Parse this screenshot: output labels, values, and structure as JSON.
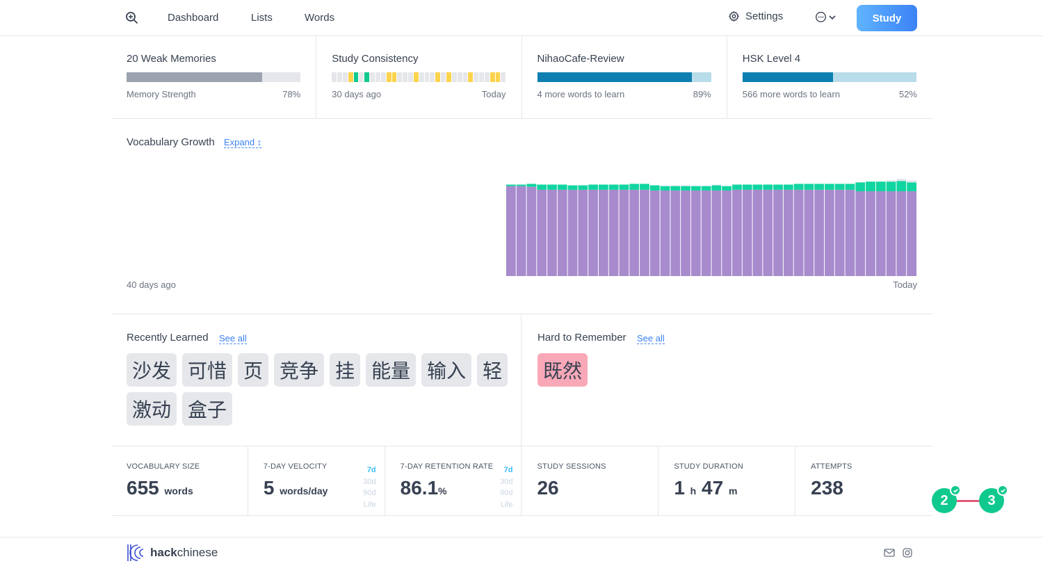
{
  "nav": {
    "links": [
      "Dashboard",
      "Lists",
      "Words"
    ],
    "settings_label": "Settings",
    "study_label": "Study"
  },
  "cards": [
    {
      "title": "20 Weak Memories",
      "sub": "Memory Strength",
      "right": "78%",
      "progress": 0.78,
      "color": "#9ca3af",
      "track": "#e5e7eb"
    },
    {
      "title": "Study Consistency",
      "sub": "30 days ago",
      "right": "Today"
    },
    {
      "title": "NihaoCafe-Review",
      "sub": "4 more words to learn",
      "right": "89%",
      "progress": 0.89,
      "color": "#0e7fb0",
      "track": "#b8dcea"
    },
    {
      "title": "HSK Level 4",
      "sub": "566 more words to learn",
      "right": "52%",
      "progress": 0.52,
      "color": "#0e7fb0",
      "track": "#b8dcea"
    }
  ],
  "consistency": {
    "days": [
      0,
      0,
      0,
      2,
      1,
      0,
      1,
      0,
      0,
      0,
      2,
      2,
      0,
      0,
      0,
      2,
      0,
      0,
      0,
      2,
      0,
      2,
      0,
      0,
      0,
      2,
      0,
      0,
      0,
      2,
      2,
      0
    ],
    "colors": {
      "0": "#e5e7eb",
      "1": "#10c98f",
      "2": "#fcd34d"
    }
  },
  "growth": {
    "title": "Vocabulary Growth",
    "expand_label": "Expand",
    "left_label": "40 days ago",
    "right_label": "Today"
  },
  "chart_data": {
    "type": "bar",
    "stacked": true,
    "categories_count": 40,
    "series": [
      {
        "color": "#a78bcd",
        "values": [
          122,
          122,
          121,
          117,
          117,
          117,
          117,
          117,
          117,
          117,
          117,
          117,
          117,
          117,
          116,
          116,
          116,
          116,
          116,
          116,
          116,
          116,
          117,
          117,
          117,
          117,
          117,
          117,
          117,
          117,
          117,
          117,
          117,
          117,
          115,
          115,
          115,
          115,
          115,
          115
        ]
      },
      {
        "color": "#10d5a0",
        "values": [
          2,
          2,
          4,
          7,
          7,
          7,
          6,
          6,
          7,
          7,
          7,
          7,
          8,
          8,
          7,
          6,
          6,
          6,
          6,
          6,
          7,
          6,
          7,
          7,
          7,
          7,
          7,
          7,
          8,
          8,
          8,
          8,
          8,
          8,
          12,
          13,
          13,
          13,
          14,
          12
        ]
      },
      {
        "color": "#e5e7eb",
        "values": [
          0,
          0,
          0,
          0,
          0,
          0,
          0,
          0,
          0,
          0,
          0,
          0,
          0,
          0,
          0,
          0,
          1,
          1,
          0,
          0,
          1,
          0,
          0,
          0,
          0,
          0,
          0,
          0,
          0,
          0,
          0,
          0,
          0,
          0,
          0,
          0,
          0,
          2,
          3,
          3
        ]
      }
    ]
  },
  "recent": {
    "title": "Recently Learned",
    "see_all": "See all",
    "words": [
      "沙发",
      "可惜",
      "页",
      "竞争",
      "挂",
      "能量",
      "输入",
      "轻",
      "激动",
      "盒子"
    ]
  },
  "hard": {
    "title": "Hard to Remember",
    "see_all": "See all",
    "words": [
      "既然"
    ]
  },
  "stats": [
    {
      "label": "VOCABULARY SIZE",
      "value": "655",
      "unit": "words"
    },
    {
      "label": "7-DAY VELOCITY",
      "value": "5",
      "unit": "words/day",
      "ranges": [
        "7d",
        "30d",
        "90d",
        "Life"
      ]
    },
    {
      "label": "7-DAY RETENTION RATE",
      "value": "86.1",
      "unit": "%",
      "ranges": [
        "7d",
        "30d",
        "90d",
        "Life"
      ]
    },
    {
      "label": "STUDY SESSIONS",
      "value": "26"
    },
    {
      "label": "STUDY DURATION",
      "value": "1",
      "unit": "h",
      "value2": "47",
      "unit2": "m"
    },
    {
      "label": "ATTEMPTS",
      "value": "238"
    }
  ],
  "badges": [
    "2",
    "3"
  ],
  "footer": {
    "brand_bold": "hack",
    "brand_rest": "chinese"
  }
}
